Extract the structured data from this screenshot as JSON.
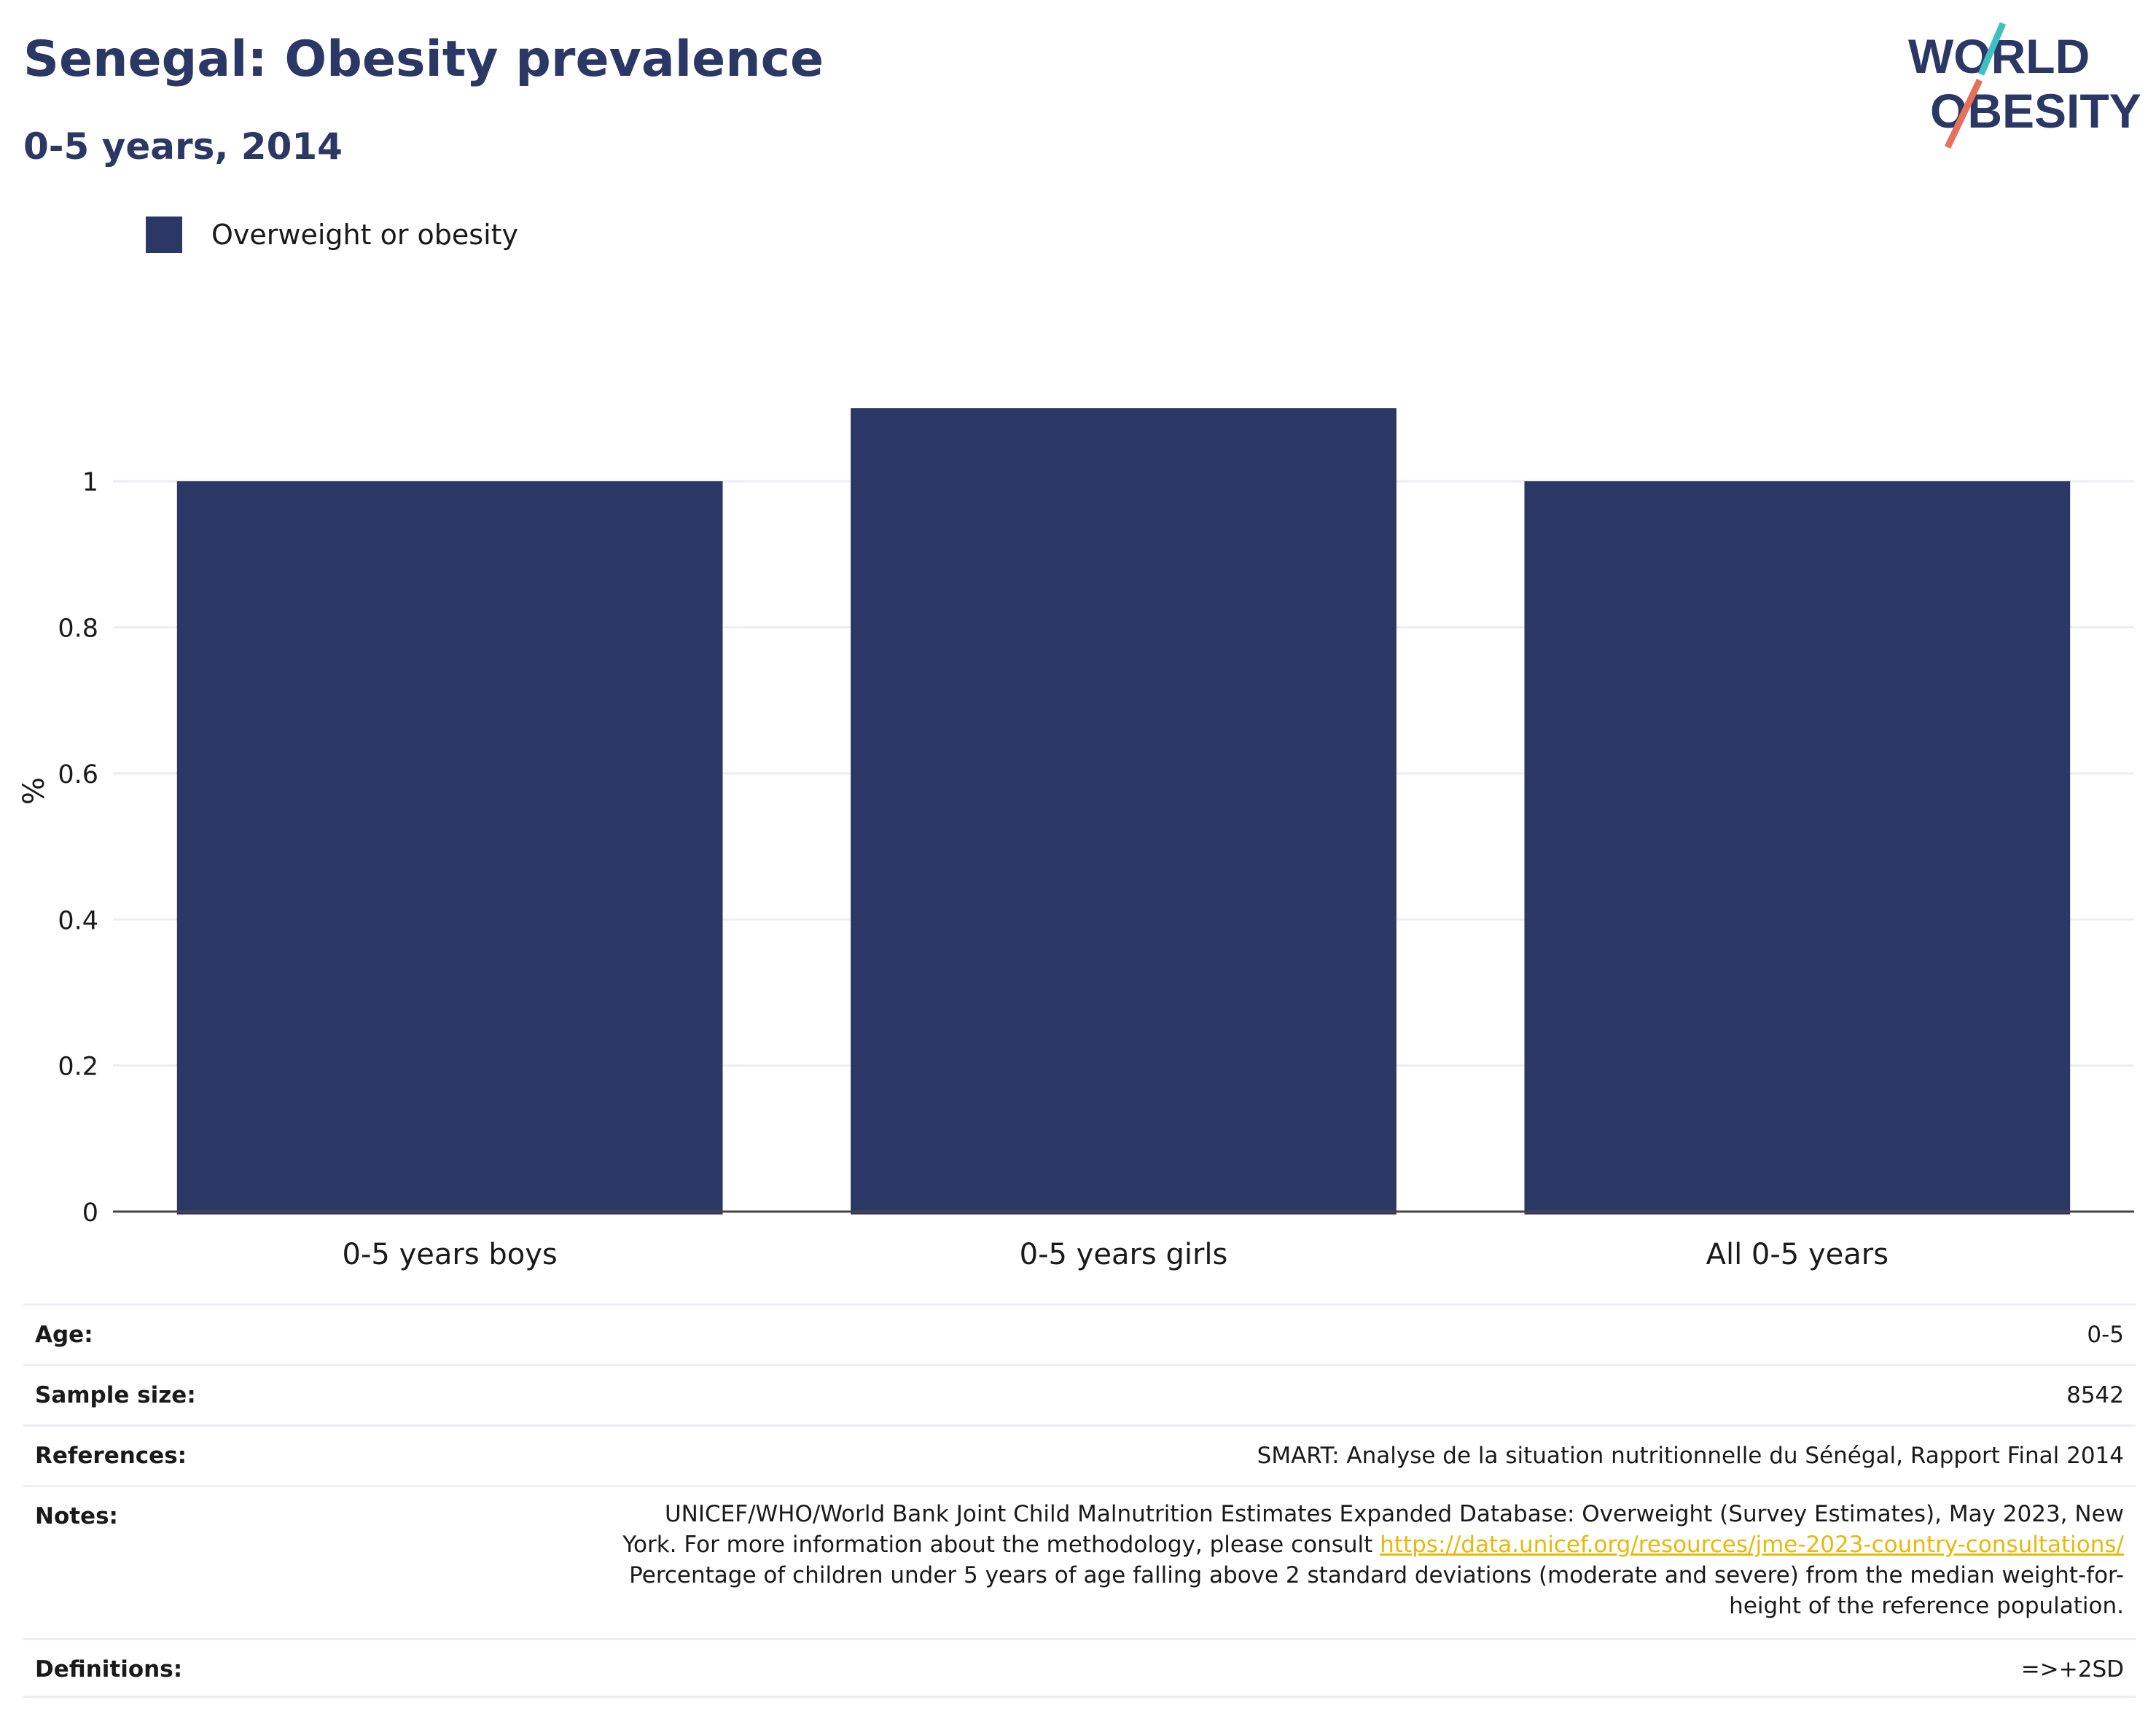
{
  "header": {
    "title": "Senegal: Obesity prevalence",
    "subtitle": "0-5 years, 2014",
    "logo_line1": "WORLD",
    "logo_line2": "OBESITY"
  },
  "colors": {
    "bar": "#2b3764",
    "title": "#2b3764",
    "link": "#e8b80a",
    "logo_teal": "#3fbfbf",
    "logo_coral": "#e8705a"
  },
  "chart_data": {
    "type": "bar",
    "categories": [
      "0-5 years boys",
      "0-5 years girls",
      "All 0-5 years"
    ],
    "series": [
      {
        "name": "Overweight or obesity",
        "values": [
          1.0,
          1.1,
          1.0
        ]
      }
    ],
    "ylabel": "%",
    "yticks": [
      "0",
      "0.2",
      "0.4",
      "0.6",
      "0.8",
      "1"
    ],
    "ylim": [
      0,
      1.1
    ],
    "grid": true,
    "legend": "top-left"
  },
  "info": {
    "age_label": "Age:",
    "age_value": "0-5",
    "sample_label": "Sample size:",
    "sample_value": "8542",
    "references_label": "References:",
    "references_value": "SMART: Analyse de la situation nutritionnelle du Sénégal, Rapport Final 2014",
    "notes_label": "Notes:",
    "notes_line1": "UNICEF/WHO/World Bank Joint Child Malnutrition Estimates Expanded Database: Overweight (Survey Estimates), May 2023, New",
    "notes_line2_prefix": "York. For more information about the methodology, please consult ",
    "notes_link": "https://data.unicef.org/resources/jme-2023-country-consultations/",
    "notes_line3": "Percentage of children under 5 years of age falling above 2 standard deviations (moderate and severe) from the median weight-for-",
    "notes_line4": "height of the reference population.",
    "definitions_label": "Definitions:",
    "definitions_value": "=>+2SD"
  }
}
